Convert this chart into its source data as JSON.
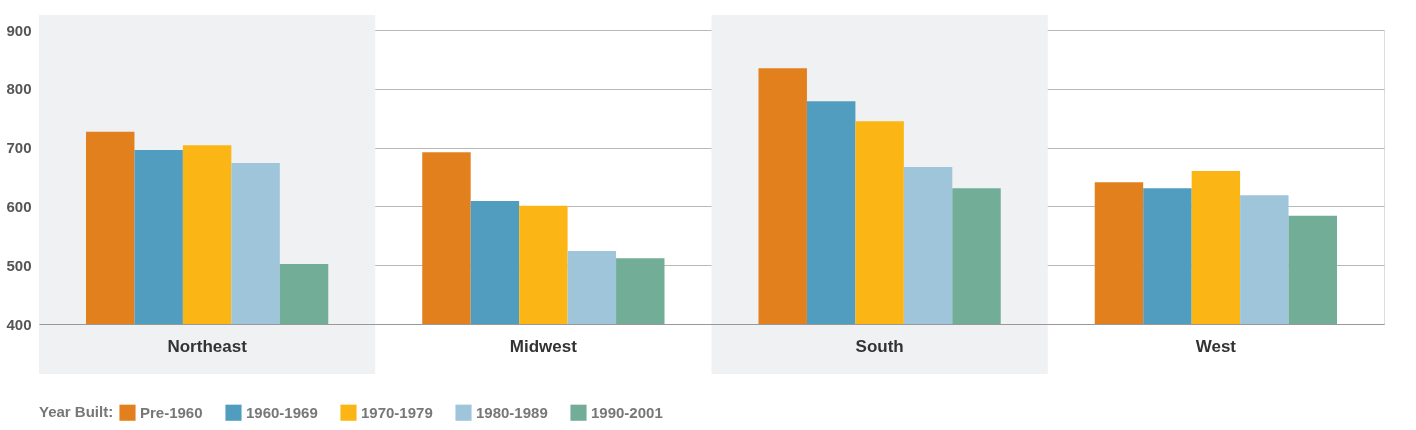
{
  "chart_data": {
    "type": "bar",
    "categories": [
      "Northeast",
      "Midwest",
      "South",
      "West"
    ],
    "series": [
      {
        "name": "Pre-1960",
        "color": "#e3801e",
        "values": [
          727,
          692,
          835,
          641
        ]
      },
      {
        "name": "1960-1969",
        "color": "#519dbf",
        "values": [
          696,
          609,
          779,
          631
        ]
      },
      {
        "name": "1970-1979",
        "color": "#fbb616",
        "values": [
          704,
          601,
          745,
          660
        ]
      },
      {
        "name": "1980-1989",
        "color": "#9fc5da",
        "values": [
          674,
          524,
          667,
          619
        ]
      },
      {
        "name": "1990-2001",
        "color": "#72ad98",
        "values": [
          502,
          512,
          631,
          584
        ]
      }
    ],
    "legend_title": "Year Built:",
    "legend": "bottom left",
    "ylim": [
      400,
      900
    ],
    "yticks": [
      400,
      500,
      600,
      700,
      800,
      900
    ],
    "grid": "y",
    "bands": [
      {
        "axis": "x",
        "from": "Northeast",
        "to": "Northeast",
        "color": "#f0f1f3"
      },
      {
        "axis": "x",
        "from": "South",
        "to": "South",
        "color": "#f0f1f3"
      }
    ]
  }
}
